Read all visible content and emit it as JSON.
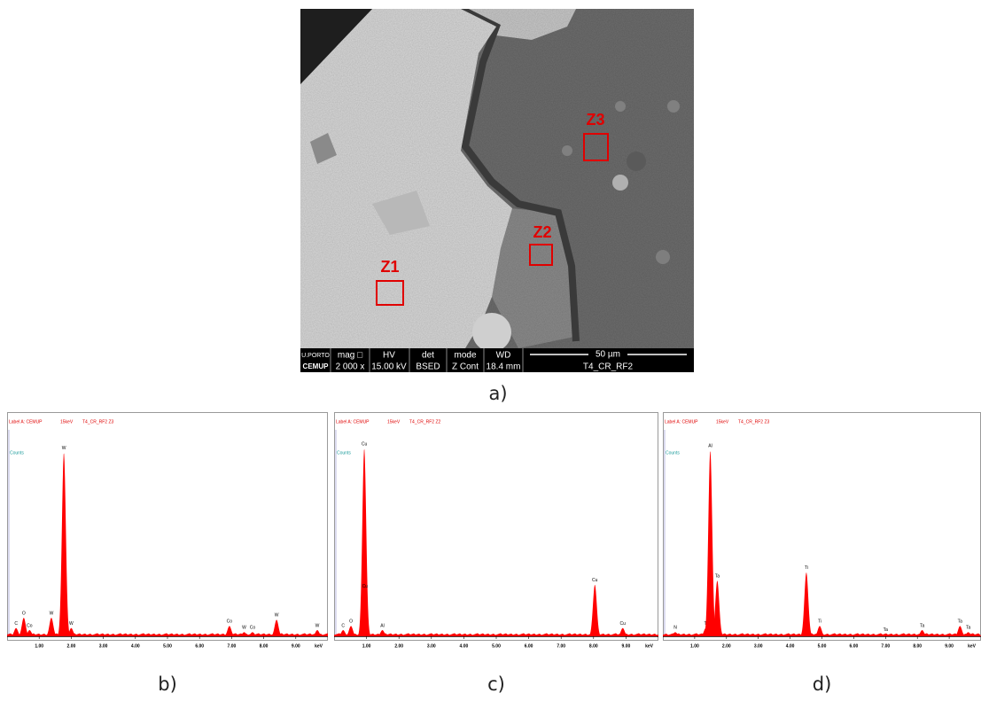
{
  "sem_image": {
    "zones": [
      "Z1",
      "Z2",
      "Z3"
    ],
    "logo": [
      "U.PORTO",
      "CEMUP"
    ],
    "info_bar": {
      "headers": [
        "mag □",
        "HV",
        "det",
        "mode",
        "WD"
      ],
      "values": [
        "2 000 x",
        "15.00 kV",
        "BSED",
        "Z Cont",
        "18.4 mm"
      ],
      "scale_bar": "50 µm",
      "sample": "T4_CR_RF2"
    },
    "caption": "a)"
  },
  "chart_data": [
    {
      "type": "spectrum",
      "caption": "b)",
      "header": [
        "Label A: CEMUP",
        "15keV",
        "T4_CR_RF2 Z3"
      ],
      "y_label": "Counts",
      "x_unit": "keV",
      "xlim": [
        0,
        10
      ],
      "ylim": [
        0,
        100
      ],
      "color": "#ff0000",
      "xticks": [
        {
          "value": 1,
          "label": "1.00"
        },
        {
          "value": 2,
          "label": "2.00"
        },
        {
          "value": 3,
          "label": "3.00"
        },
        {
          "value": 4,
          "label": "4.00"
        },
        {
          "value": 5,
          "label": "5.00"
        },
        {
          "value": 6,
          "label": "6.00"
        },
        {
          "value": 7,
          "label": "7.00"
        },
        {
          "value": 8,
          "label": "8.00"
        },
        {
          "value": 9,
          "label": "9.00"
        }
      ],
      "peaks": {
        "labels": [
          "C",
          "O",
          "Co",
          "W",
          "W",
          "W",
          "Co",
          "W",
          "Co",
          "W",
          "W"
        ],
        "x": [
          0.28,
          0.52,
          0.7,
          1.38,
          1.77,
          2.0,
          6.93,
          7.39,
          7.65,
          8.4,
          9.67
        ],
        "values": [
          4,
          9,
          3,
          9,
          89,
          4,
          5,
          2,
          2,
          8,
          3
        ]
      }
    },
    {
      "type": "spectrum",
      "caption": "c)",
      "header": [
        "Label A: CEMUP",
        "15keV",
        "T4_CR_RF2 Z2"
      ],
      "y_label": "Counts",
      "x_unit": "keV",
      "xlim": [
        0,
        10
      ],
      "ylim": [
        0,
        100
      ],
      "color": "#ff0000",
      "xticks": [
        {
          "value": 1,
          "label": "1.00"
        },
        {
          "value": 2,
          "label": "2.00"
        },
        {
          "value": 3,
          "label": "3.00"
        },
        {
          "value": 4,
          "label": "4.00"
        },
        {
          "value": 5,
          "label": "5.00"
        },
        {
          "value": 6,
          "label": "6.00"
        },
        {
          "value": 7,
          "label": "7.00"
        },
        {
          "value": 8,
          "label": "8.00"
        },
        {
          "value": 9,
          "label": "9.00"
        }
      ],
      "peaks": {
        "labels": [
          "C",
          "O",
          "Cu",
          "Cu",
          "Al",
          "Cu",
          "Cu"
        ],
        "x": [
          0.28,
          0.52,
          0.93,
          0.95,
          1.49,
          8.04,
          8.9
        ],
        "values": [
          3,
          5,
          91,
          22,
          3,
          25,
          4
        ]
      }
    },
    {
      "type": "spectrum",
      "caption": "d)",
      "header": [
        "Label A: CEMUP",
        "15keV",
        "T4_CR_RF2 Z3"
      ],
      "y_label": "Counts",
      "x_unit": "keV",
      "xlim": [
        0,
        10
      ],
      "ylim": [
        0,
        100
      ],
      "color": "#ff0000",
      "xticks": [
        {
          "value": 1,
          "label": "1.00"
        },
        {
          "value": 2,
          "label": "2.00"
        },
        {
          "value": 3,
          "label": "3.00"
        },
        {
          "value": 4,
          "label": "4.00"
        },
        {
          "value": 5,
          "label": "5.00"
        },
        {
          "value": 6,
          "label": "6.00"
        },
        {
          "value": 7,
          "label": "7.00"
        },
        {
          "value": 8,
          "label": "8.00"
        },
        {
          "value": 9,
          "label": "9.00"
        }
      ],
      "peaks": {
        "labels": [
          "N",
          "Ti",
          "Al",
          "Ta",
          "Ti",
          "Ti",
          "Ta",
          "Ta",
          "Ta",
          "Ta"
        ],
        "x": [
          0.39,
          1.35,
          1.49,
          1.71,
          4.51,
          4.93,
          7.0,
          8.15,
          9.34,
          9.6
        ],
        "values": [
          2,
          4,
          90,
          27,
          31,
          5,
          1,
          3,
          5,
          2
        ]
      }
    }
  ]
}
